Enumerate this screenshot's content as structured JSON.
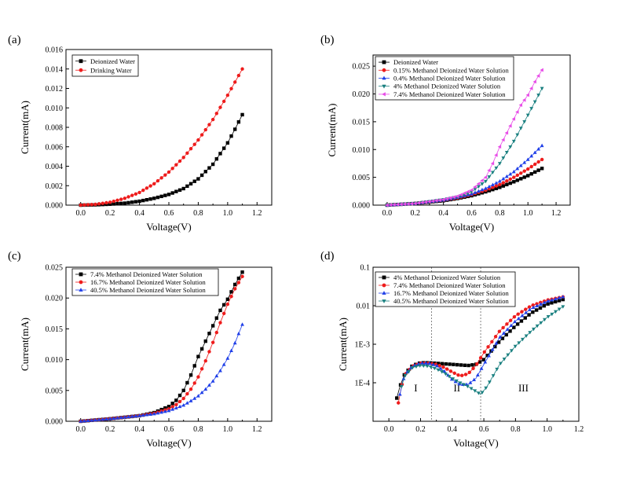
{
  "figure": {
    "colors": {
      "black": "#000000",
      "red": "#ee1c1c",
      "blue": "#1f3fe8",
      "teal": "#1a8080",
      "magenta": "#e84de8"
    }
  },
  "chart_data": [
    {
      "panel": "(a)",
      "type": "scatter",
      "xlabel": "Voltage(V)",
      "ylabel": "Current(mA)",
      "xlim": [
        -0.1,
        1.3
      ],
      "ylim": [
        0,
        0.016
      ],
      "xticks": [
        0.0,
        0.2,
        0.4,
        0.6,
        0.8,
        1.0,
        1.2
      ],
      "xtick_labels": [
        "0.0",
        "0.2",
        "0.4",
        "0.6",
        "0.8",
        "1.0",
        "1.2"
      ],
      "yticks": [
        0,
        0.002,
        0.004,
        0.006,
        0.008,
        0.01,
        0.012,
        0.014,
        0.016
      ],
      "ytick_labels": [
        "0.000",
        "0.002",
        "0.004",
        "0.006",
        "0.008",
        "0.010",
        "0.012",
        "0.014",
        "0.016"
      ],
      "legend": "top-left",
      "series": [
        {
          "name": "Deionized Water",
          "color": "#000000",
          "marker": "square",
          "x_start": 0.0,
          "x_end": 1.1,
          "x": [
            0,
            0.1,
            0.2,
            0.3,
            0.4,
            0.5,
            0.6,
            0.7,
            0.8,
            0.9,
            1.0,
            1.05,
            1.1
          ],
          "y": [
            0,
            3e-05,
            0.0001,
            0.0002,
            0.0004,
            0.0007,
            0.0011,
            0.0017,
            0.0027,
            0.0042,
            0.0064,
            0.0078,
            0.0093
          ]
        },
        {
          "name": "Drinking Water",
          "color": "#ee1c1c",
          "marker": "circle",
          "x_start": 0.0,
          "x_end": 1.1,
          "x": [
            0,
            0.1,
            0.2,
            0.3,
            0.4,
            0.5,
            0.6,
            0.7,
            0.8,
            0.9,
            1.0,
            1.1
          ],
          "y": [
            0,
            8e-05,
            0.0003,
            0.0007,
            0.0013,
            0.0022,
            0.0034,
            0.0049,
            0.0067,
            0.0088,
            0.0113,
            0.014
          ]
        }
      ]
    },
    {
      "panel": "(b)",
      "type": "scatter",
      "xlabel": "Voltage(V)",
      "ylabel": "Current(mA)",
      "xlim": [
        -0.1,
        1.3
      ],
      "ylim": [
        0,
        0.027
      ],
      "xticks": [
        0.0,
        0.2,
        0.4,
        0.6,
        0.8,
        1.0,
        1.2
      ],
      "xtick_labels": [
        "0.0",
        "0.2",
        "0.4",
        "0.6",
        "0.8",
        "1.0",
        "1.2"
      ],
      "yticks": [
        0,
        0.005,
        0.01,
        0.015,
        0.02,
        0.025
      ],
      "ytick_labels": [
        "0.000",
        "0.005",
        "0.010",
        "0.015",
        "0.020",
        "0.025"
      ],
      "legend": "top-left",
      "series": [
        {
          "name": "Deionized Water",
          "color": "#000000",
          "marker": "square",
          "x_start": 0.0,
          "x_end": 1.1,
          "x": [
            0,
            0.2,
            0.4,
            0.5,
            0.6,
            0.7,
            0.8,
            0.9,
            1.0,
            1.1
          ],
          "y": [
            0,
            0.0003,
            0.0008,
            0.0012,
            0.0017,
            0.0024,
            0.0032,
            0.0042,
            0.0053,
            0.0066
          ]
        },
        {
          "name": "0.15% Methanol Deionized Water Solution",
          "color": "#ee1c1c",
          "marker": "circle",
          "x_start": 0.0,
          "x_end": 1.1,
          "x": [
            0,
            0.2,
            0.4,
            0.5,
            0.6,
            0.7,
            0.8,
            0.9,
            1.0,
            1.1
          ],
          "y": [
            0,
            0.0003,
            0.0009,
            0.0013,
            0.0019,
            0.0027,
            0.0037,
            0.005,
            0.0065,
            0.0082
          ]
        },
        {
          "name": "0.4% Methanol Deionized Water Solution",
          "color": "#1f3fe8",
          "marker": "triangle-up",
          "x_start": 0.0,
          "x_end": 1.1,
          "x": [
            0,
            0.2,
            0.4,
            0.5,
            0.6,
            0.7,
            0.8,
            0.9,
            1.0,
            1.1
          ],
          "y": [
            0,
            0.0003,
            0.0009,
            0.0014,
            0.002,
            0.003,
            0.0043,
            0.006,
            0.0082,
            0.0107
          ]
        },
        {
          "name": "4% Methanol Deionized Water Solution",
          "color": "#1a8080",
          "marker": "triangle-down",
          "x_start": 0.0,
          "x_end": 1.1,
          "x": [
            0,
            0.2,
            0.4,
            0.5,
            0.6,
            0.7,
            0.8,
            0.9,
            1.0,
            1.1
          ],
          "y": [
            0,
            0.0003,
            0.001,
            0.0015,
            0.0024,
            0.0043,
            0.0075,
            0.0115,
            0.0162,
            0.021
          ]
        },
        {
          "name": "7.4% Methanol Deionized Water Solution",
          "color": "#e84de8",
          "marker": "triangle-left",
          "x_start": 0.0,
          "x_end": 1.1,
          "x": [
            0,
            0.2,
            0.4,
            0.5,
            0.6,
            0.7,
            0.75,
            0.8,
            0.85,
            0.9,
            0.95,
            1.0,
            1.05,
            1.1
          ],
          "y": [
            0,
            0.0003,
            0.001,
            0.0016,
            0.0027,
            0.005,
            0.0075,
            0.0105,
            0.013,
            0.0155,
            0.018,
            0.0198,
            0.0222,
            0.0243
          ]
        }
      ]
    },
    {
      "panel": "(c)",
      "type": "scatter",
      "xlabel": "Voltage(V)",
      "ylabel": "Current(mA)",
      "xlim": [
        -0.1,
        1.3
      ],
      "ylim": [
        0,
        0.025
      ],
      "xticks": [
        0.0,
        0.2,
        0.4,
        0.6,
        0.8,
        1.0,
        1.2
      ],
      "xtick_labels": [
        "0.0",
        "0.2",
        "0.4",
        "0.6",
        "0.8",
        "1.0",
        "1.2"
      ],
      "yticks": [
        0,
        0.005,
        0.01,
        0.015,
        0.02,
        0.025
      ],
      "ytick_labels": [
        "0.000",
        "0.005",
        "0.010",
        "0.015",
        "0.020",
        "0.025"
      ],
      "legend": "top-left",
      "series": [
        {
          "name": "7.4% Methanol Deionized Water Solution",
          "color": "#000000",
          "marker": "square",
          "x_start": 0.0,
          "x_end": 1.1,
          "x": [
            0,
            0.2,
            0.4,
            0.5,
            0.6,
            0.65,
            0.7,
            0.75,
            0.8,
            0.85,
            0.9,
            0.95,
            1.0,
            1.05,
            1.1
          ],
          "y": [
            0,
            0.0004,
            0.0009,
            0.0014,
            0.0024,
            0.0034,
            0.005,
            0.0075,
            0.0105,
            0.013,
            0.0155,
            0.018,
            0.0198,
            0.0222,
            0.0242
          ]
        },
        {
          "name": "16.7% Methanol Deionized Water Solution",
          "color": "#ee1c1c",
          "marker": "circle",
          "x_start": 0.0,
          "x_end": 1.1,
          "x": [
            0,
            0.2,
            0.4,
            0.5,
            0.6,
            0.65,
            0.7,
            0.75,
            0.8,
            0.85,
            0.9,
            0.95,
            1.0,
            1.05,
            1.1
          ],
          "y": [
            0,
            0.0004,
            0.0009,
            0.0013,
            0.002,
            0.0027,
            0.0037,
            0.0052,
            0.0072,
            0.0098,
            0.0128,
            0.016,
            0.019,
            0.0215,
            0.0235
          ]
        },
        {
          "name": "40.5% Methanol Deionized Water Solution",
          "color": "#1f3fe8",
          "marker": "triangle-up",
          "x_start": 0.0,
          "x_end": 1.1,
          "x": [
            0,
            0.2,
            0.4,
            0.5,
            0.6,
            0.7,
            0.75,
            0.8,
            0.85,
            0.9,
            0.95,
            1.0,
            1.05,
            1.1
          ],
          "y": [
            0,
            0.0004,
            0.0009,
            0.0012,
            0.0017,
            0.0026,
            0.0033,
            0.0041,
            0.0052,
            0.0065,
            0.0082,
            0.0102,
            0.0127,
            0.0157
          ]
        }
      ]
    },
    {
      "panel": "(d)",
      "type": "scatter",
      "yscale": "log",
      "xlabel": "Voltage(V)",
      "ylabel": "Current(mA)",
      "xlim": [
        -0.1,
        1.2
      ],
      "ylim": [
        1e-05,
        0.1
      ],
      "xticks": [
        0.0,
        0.2,
        0.4,
        0.6,
        0.8,
        1.0,
        1.2
      ],
      "xtick_labels": [
        "0.0",
        "0.2",
        "0.4",
        "0.6",
        "0.8",
        "1.0",
        "1.2"
      ],
      "yticks": [
        0.0001,
        0.001,
        0.01,
        0.1
      ],
      "ytick_labels": [
        "1E-4",
        "1E-3",
        "0.01",
        "0.1"
      ],
      "legend": "top-left",
      "dashed_lines_x": [
        0.27,
        0.58
      ],
      "regions": [
        {
          "label": "I",
          "x": 0.17,
          "y": 6e-05
        },
        {
          "label": "II",
          "x": 0.43,
          "y": 6e-05
        },
        {
          "label": "III",
          "x": 0.85,
          "y": 6e-05
        }
      ],
      "series": [
        {
          "name": "4% Methanol Deionized Water Solution",
          "color": "#000000",
          "marker": "square",
          "x_start": 0.05,
          "x_end": 1.1,
          "x": [
            0.05,
            0.07,
            0.1,
            0.15,
            0.2,
            0.25,
            0.3,
            0.4,
            0.5,
            0.55,
            0.6,
            0.7,
            0.8,
            0.9,
            1.0,
            1.1
          ],
          "y": [
            4e-05,
            8e-05,
            0.00017,
            0.00028,
            0.00033,
            0.00033,
            0.00032,
            0.0003,
            0.00028,
            0.0003,
            0.0004,
            0.0012,
            0.003,
            0.0065,
            0.011,
            0.0145
          ]
        },
        {
          "name": "7.4% Methanol Deionized Water Solution",
          "color": "#ee1c1c",
          "marker": "circle",
          "x_start": 0.06,
          "x_end": 1.1,
          "x": [
            0.06,
            0.08,
            0.1,
            0.15,
            0.2,
            0.25,
            0.3,
            0.35,
            0.4,
            0.45,
            0.5,
            0.55,
            0.6,
            0.7,
            0.8,
            0.9,
            1.0,
            1.1
          ],
          "y": [
            3e-05,
            8e-05,
            0.00016,
            0.00027,
            0.00032,
            0.00032,
            0.0003,
            0.00025,
            0.00019,
            0.00015,
            0.00017,
            0.00028,
            0.0006,
            0.0022,
            0.0055,
            0.01,
            0.014,
            0.017
          ]
        },
        {
          "name": "16.7% Methanol Deionized Water Solution",
          "color": "#1f3fe8",
          "marker": "triangle-up",
          "x_start": 0.07,
          "x_end": 1.1,
          "x": [
            0.07,
            0.09,
            0.12,
            0.15,
            0.2,
            0.25,
            0.3,
            0.35,
            0.4,
            0.45,
            0.5,
            0.55,
            0.6,
            0.7,
            0.8,
            0.9,
            1.0,
            1.1
          ],
          "y": [
            5e-05,
            0.00012,
            0.0002,
            0.00027,
            0.00032,
            0.00032,
            0.00028,
            0.0002,
            0.00012,
            9e-05,
            9e-05,
            0.00013,
            0.0003,
            0.0015,
            0.004,
            0.0085,
            0.013,
            0.017
          ]
        },
        {
          "name": "40.5% Methanol Deionized Water Solution",
          "color": "#1a8080",
          "marker": "triangle-down",
          "x_start": 0.08,
          "x_end": 1.1,
          "x": [
            0.08,
            0.1,
            0.15,
            0.2,
            0.25,
            0.3,
            0.35,
            0.4,
            0.45,
            0.5,
            0.55,
            0.58,
            0.62,
            0.7,
            0.8,
            0.9,
            1.0,
            1.1
          ],
          "y": [
            8e-05,
            0.00015,
            0.00025,
            0.00028,
            0.00027,
            0.00023,
            0.00018,
            0.00013,
            0.0001,
            8e-05,
            6e-05,
            5e-05,
            8e-05,
            0.0003,
            0.0009,
            0.0022,
            0.005,
            0.0095
          ]
        }
      ]
    }
  ]
}
